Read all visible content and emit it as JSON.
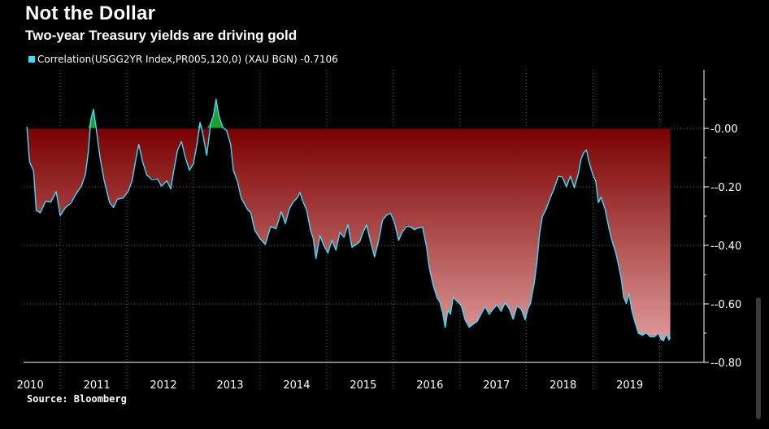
{
  "header": {
    "title": "Not the Dollar",
    "subtitle": "Two-year Treasury yields are driving gold"
  },
  "source": "Source: Bloomberg",
  "colors": {
    "line": "#3ddcff",
    "positive_fill": "#1fa02a",
    "negative_fill_top": "#7a0000",
    "negative_fill_bottom": "#e09a9a",
    "grid": "#666666"
  },
  "chart_data": {
    "type": "area",
    "legend": [
      {
        "label": "Correlation(USGG2YR Index,PR005,120,0) (XAU BGN) -0.7106",
        "color": "#3ddcff"
      }
    ],
    "ylim": [
      -0.8,
      0.2
    ],
    "yticks": [
      0.0,
      -0.2,
      -0.4,
      -0.6,
      -0.8
    ],
    "ytick_labels": [
      "0.00",
      "-0.20",
      "-0.40",
      "-0.60",
      "-0.80"
    ],
    "xlim": [
      2009.95,
      2019.97
    ],
    "xtick_labels": [
      "2010",
      "2011",
      "2012",
      "2013",
      "2014",
      "2015",
      "2016",
      "2017",
      "2018",
      "2019"
    ],
    "grid": true,
    "series": [
      {
        "points": [
          [
            2010.0,
            0.0
          ],
          [
            2010.04,
            -0.11
          ],
          [
            2010.1,
            -0.15
          ],
          [
            2010.14,
            -0.28
          ],
          [
            2010.2,
            -0.29
          ],
          [
            2010.28,
            -0.25
          ],
          [
            2010.36,
            -0.25
          ],
          [
            2010.44,
            -0.22
          ],
          [
            2010.5,
            -0.3
          ],
          [
            2010.58,
            -0.27
          ],
          [
            2010.66,
            -0.25
          ],
          [
            2010.74,
            -0.22
          ],
          [
            2010.82,
            -0.2
          ],
          [
            2010.88,
            -0.15
          ],
          [
            2010.92,
            -0.08
          ],
          [
            2010.96,
            0.03
          ],
          [
            2011.0,
            0.07
          ],
          [
            2011.04,
            0.0
          ],
          [
            2011.1,
            -0.1
          ],
          [
            2011.16,
            -0.18
          ],
          [
            2011.24,
            -0.25
          ],
          [
            2011.3,
            -0.27
          ],
          [
            2011.36,
            -0.24
          ],
          [
            2011.44,
            -0.24
          ],
          [
            2011.52,
            -0.22
          ],
          [
            2011.58,
            -0.18
          ],
          [
            2011.64,
            -0.1
          ],
          [
            2011.68,
            -0.06
          ],
          [
            2011.74,
            -0.12
          ],
          [
            2011.8,
            -0.16
          ],
          [
            2011.88,
            -0.17
          ],
          [
            2011.96,
            -0.17
          ],
          [
            2012.02,
            -0.2
          ],
          [
            2012.1,
            -0.18
          ],
          [
            2012.16,
            -0.21
          ],
          [
            2012.2,
            -0.15
          ],
          [
            2012.26,
            -0.07
          ],
          [
            2012.32,
            -0.04
          ],
          [
            2012.38,
            -0.1
          ],
          [
            2012.44,
            -0.14
          ],
          [
            2012.5,
            -0.12
          ],
          [
            2012.56,
            -0.04
          ],
          [
            2012.6,
            0.02
          ],
          [
            2012.64,
            -0.02
          ],
          [
            2012.7,
            -0.09
          ],
          [
            2012.76,
            0.02
          ],
          [
            2012.8,
            0.04
          ],
          [
            2012.84,
            0.1
          ],
          [
            2012.88,
            0.04
          ],
          [
            2012.94,
            0.0
          ],
          [
            2013.0,
            -0.01
          ],
          [
            2013.06,
            -0.06
          ],
          [
            2013.1,
            -0.14
          ],
          [
            2013.16,
            -0.18
          ],
          [
            2013.22,
            -0.24
          ],
          [
            2013.28,
            -0.26
          ],
          [
            2013.32,
            -0.28
          ],
          [
            2013.36,
            -0.29
          ],
          [
            2013.42,
            -0.35
          ],
          [
            2013.5,
            -0.38
          ],
          [
            2013.58,
            -0.4
          ],
          [
            2013.66,
            -0.34
          ],
          [
            2013.74,
            -0.34
          ],
          [
            2013.82,
            -0.29
          ],
          [
            2013.88,
            -0.33
          ],
          [
            2013.94,
            -0.28
          ],
          [
            2014.0,
            -0.25
          ],
          [
            2014.06,
            -0.24
          ],
          [
            2014.1,
            -0.22
          ],
          [
            2014.14,
            -0.25
          ],
          [
            2014.2,
            -0.28
          ],
          [
            2014.26,
            -0.35
          ],
          [
            2014.3,
            -0.38
          ],
          [
            2014.34,
            -0.45
          ],
          [
            2014.4,
            -0.37
          ],
          [
            2014.46,
            -0.4
          ],
          [
            2014.52,
            -0.43
          ],
          [
            2014.58,
            -0.38
          ],
          [
            2014.64,
            -0.42
          ],
          [
            2014.7,
            -0.36
          ],
          [
            2014.76,
            -0.37
          ],
          [
            2014.82,
            -0.33
          ],
          [
            2014.88,
            -0.41
          ],
          [
            2014.94,
            -0.4
          ],
          [
            2015.0,
            -0.39
          ],
          [
            2015.04,
            -0.36
          ],
          [
            2015.1,
            -0.33
          ],
          [
            2015.16,
            -0.39
          ],
          [
            2015.22,
            -0.44
          ],
          [
            2015.28,
            -0.38
          ],
          [
            2015.34,
            -0.31
          ],
          [
            2015.4,
            -0.3
          ],
          [
            2015.46,
            -0.29
          ],
          [
            2015.52,
            -0.32
          ],
          [
            2015.58,
            -0.38
          ],
          [
            2015.64,
            -0.35
          ],
          [
            2015.7,
            -0.33
          ],
          [
            2015.76,
            -0.34
          ],
          [
            2015.82,
            -0.35
          ],
          [
            2015.88,
            -0.34
          ],
          [
            2015.94,
            -0.34
          ],
          [
            2016.0,
            -0.4
          ],
          [
            2016.04,
            -0.48
          ],
          [
            2016.1,
            -0.54
          ],
          [
            2016.16,
            -0.58
          ],
          [
            2016.2,
            -0.59
          ],
          [
            2016.24,
            -0.63
          ],
          [
            2016.28,
            -0.68
          ],
          [
            2016.32,
            -0.62
          ],
          [
            2016.36,
            -0.63
          ],
          [
            2016.4,
            -0.58
          ],
          [
            2016.46,
            -0.59
          ],
          [
            2016.52,
            -0.61
          ],
          [
            2016.58,
            -0.66
          ],
          [
            2016.64,
            -0.68
          ],
          [
            2016.7,
            -0.67
          ],
          [
            2016.76,
            -0.66
          ],
          [
            2016.82,
            -0.63
          ],
          [
            2016.88,
            -0.61
          ],
          [
            2016.94,
            -0.63
          ],
          [
            2017.0,
            -0.62
          ],
          [
            2017.06,
            -0.6
          ],
          [
            2017.12,
            -0.62
          ],
          [
            2017.18,
            -0.6
          ],
          [
            2017.24,
            -0.62
          ],
          [
            2017.3,
            -0.65
          ],
          [
            2017.36,
            -0.61
          ],
          [
            2017.42,
            -0.62
          ],
          [
            2017.48,
            -0.65
          ],
          [
            2017.52,
            -0.62
          ],
          [
            2017.56,
            -0.6
          ],
          [
            2017.62,
            -0.52
          ],
          [
            2017.66,
            -0.45
          ],
          [
            2017.7,
            -0.36
          ],
          [
            2017.74,
            -0.3
          ],
          [
            2017.8,
            -0.27
          ],
          [
            2017.86,
            -0.24
          ],
          [
            2017.92,
            -0.2
          ],
          [
            2017.98,
            -0.16
          ],
          [
            2018.04,
            -0.17
          ],
          [
            2018.1,
            -0.2
          ],
          [
            2018.16,
            -0.16
          ],
          [
            2018.22,
            -0.2
          ],
          [
            2018.28,
            -0.15
          ],
          [
            2018.32,
            -0.11
          ],
          [
            2018.36,
            -0.08
          ],
          [
            2018.4,
            -0.07
          ],
          [
            2018.44,
            -0.11
          ],
          [
            2018.5,
            -0.16
          ],
          [
            2018.54,
            -0.18
          ],
          [
            2018.58,
            -0.25
          ],
          [
            2018.62,
            -0.24
          ],
          [
            2018.68,
            -0.28
          ],
          [
            2018.74,
            -0.34
          ],
          [
            2018.78,
            -0.38
          ],
          [
            2018.84,
            -0.42
          ],
          [
            2018.88,
            -0.46
          ],
          [
            2018.92,
            -0.51
          ],
          [
            2018.96,
            -0.58
          ],
          [
            2019.0,
            -0.6
          ],
          [
            2019.04,
            -0.56
          ],
          [
            2019.08,
            -0.62
          ],
          [
            2019.12,
            -0.66
          ],
          [
            2019.18,
            -0.7
          ],
          [
            2019.24,
            -0.71
          ],
          [
            2019.3,
            -0.7
          ],
          [
            2019.36,
            -0.71
          ],
          [
            2019.42,
            -0.71
          ],
          [
            2019.48,
            -0.7
          ],
          [
            2019.52,
            -0.72
          ],
          [
            2019.56,
            -0.73
          ],
          [
            2019.6,
            -0.7
          ],
          [
            2019.64,
            -0.72
          ],
          [
            2019.66,
            -0.71
          ]
        ]
      }
    ]
  }
}
